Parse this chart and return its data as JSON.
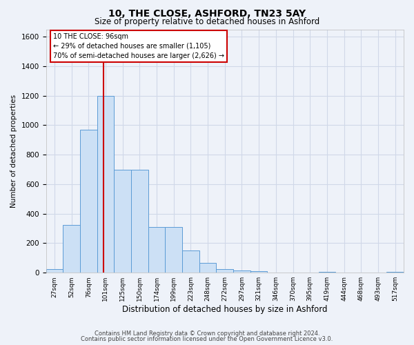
{
  "title1": "10, THE CLOSE, ASHFORD, TN23 5AY",
  "title2": "Size of property relative to detached houses in Ashford",
  "xlabel": "Distribution of detached houses by size in Ashford",
  "ylabel": "Number of detached properties",
  "footer1": "Contains HM Land Registry data © Crown copyright and database right 2024.",
  "footer2": "Contains public sector information licensed under the Open Government Licence v3.0.",
  "bin_labels": [
    "27sqm",
    "52sqm",
    "76sqm",
    "101sqm",
    "125sqm",
    "150sqm",
    "174sqm",
    "199sqm",
    "223sqm",
    "248sqm",
    "272sqm",
    "297sqm",
    "321sqm",
    "346sqm",
    "370sqm",
    "395sqm",
    "419sqm",
    "444sqm",
    "468sqm",
    "493sqm",
    "517sqm"
  ],
  "bar_values": [
    25,
    325,
    970,
    1200,
    700,
    700,
    310,
    310,
    150,
    65,
    25,
    15,
    10,
    0,
    0,
    0,
    5,
    0,
    0,
    0,
    5
  ],
  "bar_color": "#cce0f5",
  "bar_edge_color": "#5b9bd5",
  "grid_color": "#d0d8e8",
  "background_color": "#eef2f9",
  "annotation_text1": "10 THE CLOSE: 96sqm",
  "annotation_text2": "← 29% of detached houses are smaller (1,105)",
  "annotation_text3": "70% of semi-detached houses are larger (2,626) →",
  "annotation_box_color": "#ffffff",
  "annotation_border_color": "#cc0000",
  "vline_color": "#cc0000",
  "vline_x": 2.88,
  "ylim": [
    0,
    1650
  ],
  "yticks": [
    0,
    200,
    400,
    600,
    800,
    1000,
    1200,
    1400,
    1600
  ]
}
